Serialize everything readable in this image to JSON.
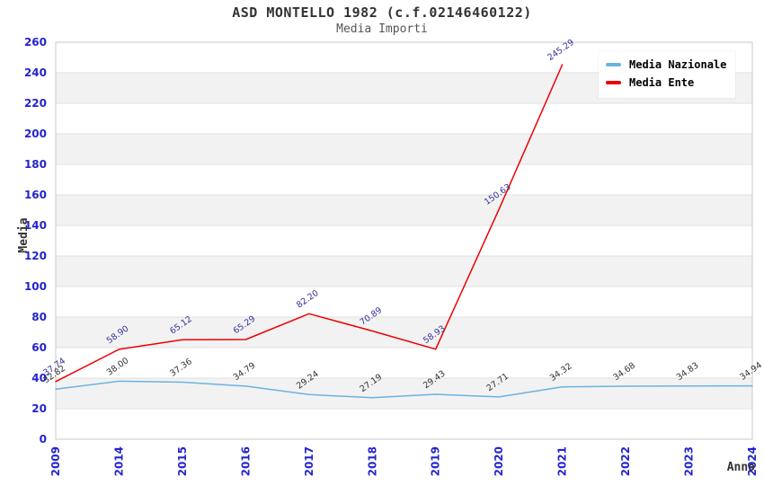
{
  "title": "ASD MONTELLO 1982 (c.f.02146460122)",
  "subtitle": "Media Importi",
  "legend": [
    {
      "label": "Media Nazionale",
      "color": "#6cb2e3"
    },
    {
      "label": "Media Ente",
      "color": "#ee0000"
    }
  ],
  "chart_data": {
    "type": "line",
    "title": "ASD MONTELLO 1982 (c.f.02146460122)",
    "subtitle": "Media Importi",
    "xlabel": "Anno",
    "ylabel": "Media",
    "categories": [
      "2009",
      "2014",
      "2015",
      "2016",
      "2017",
      "2018",
      "2019",
      "2020",
      "2021",
      "2022",
      "2023",
      "2024"
    ],
    "series": [
      {
        "name": "Media Nazionale",
        "color": "#6cb2e3",
        "label_color": "#333333",
        "values": [
          32.82,
          38.0,
          37.36,
          34.79,
          29.24,
          27.19,
          29.43,
          27.71,
          34.32,
          34.68,
          34.83,
          34.94
        ]
      },
      {
        "name": "Media Ente",
        "color": "#ee0000",
        "label_color": "#333399",
        "values": [
          37.74,
          58.9,
          65.12,
          65.29,
          82.2,
          70.89,
          58.93,
          150.63,
          245.29,
          null,
          null,
          null
        ]
      }
    ],
    "ylim": [
      0,
      260
    ],
    "ytick_step": 20,
    "grid": true,
    "alternating_bands": true,
    "legend_position": "top-right"
  },
  "style_colors": {
    "tick_label": "#2424cc",
    "band_fill": "#f2f2f2",
    "grid_line": "#e0e0e0",
    "plot_border": "#c8c8c8",
    "axis_title": "#333333"
  }
}
